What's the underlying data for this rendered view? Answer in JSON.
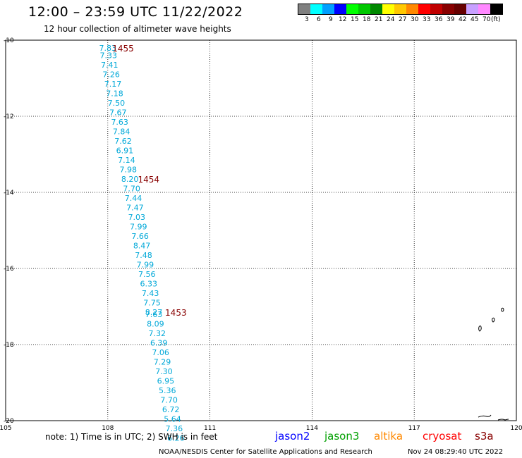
{
  "header": {
    "title": "12:00 – 23:59 UTC 11/22/2022",
    "subtitle": "12 hour collection of altimeter wave heights"
  },
  "legend": {
    "colors": [
      "#808080",
      "#00ffff",
      "#00a0ff",
      "#0000ff",
      "#00ff00",
      "#00c800",
      "#008800",
      "#ffff00",
      "#ffc800",
      "#ff8800",
      "#ff0000",
      "#c00000",
      "#880000",
      "#660000",
      "#c8a0ff",
      "#ff88ff",
      "#000000"
    ],
    "labels": [
      "3",
      "6",
      "9",
      "12",
      "15",
      "18",
      "21",
      "24",
      "27",
      "30",
      "33",
      "36",
      "39",
      "42",
      "45",
      "70",
      "(ft)"
    ]
  },
  "map": {
    "lon_range": [
      105,
      120
    ],
    "lat_range": [
      -10,
      -20
    ],
    "lon_ticks": [
      "105",
      "108",
      "111",
      "114",
      "117",
      "120"
    ],
    "lat_ticks": [
      "-10",
      "-12",
      "-14",
      "-16",
      "-18",
      "-20"
    ]
  },
  "chart_data": {
    "type": "scatter",
    "series": [
      {
        "name": "jason3",
        "color": "#00a8d8",
        "points": [
          {
            "lon": 108.0,
            "lat": -10.2,
            "value": "7.83"
          },
          {
            "lon": 108.02,
            "lat": -10.4,
            "value": "7.33"
          },
          {
            "lon": 108.05,
            "lat": -10.65,
            "value": "7.41"
          },
          {
            "lon": 108.1,
            "lat": -10.9,
            "value": "7.26"
          },
          {
            "lon": 108.15,
            "lat": -11.15,
            "value": "7.17"
          },
          {
            "lon": 108.2,
            "lat": -11.4,
            "value": "7.18"
          },
          {
            "lon": 108.25,
            "lat": -11.65,
            "value": "7.50"
          },
          {
            "lon": 108.3,
            "lat": -11.9,
            "value": "7.67"
          },
          {
            "lon": 108.35,
            "lat": -12.15,
            "value": "7.63"
          },
          {
            "lon": 108.4,
            "lat": -12.4,
            "value": "7.84"
          },
          {
            "lon": 108.45,
            "lat": -12.65,
            "value": "7.62"
          },
          {
            "lon": 108.5,
            "lat": -12.9,
            "value": "6.91"
          },
          {
            "lon": 108.55,
            "lat": -13.15,
            "value": "7.14"
          },
          {
            "lon": 108.6,
            "lat": -13.4,
            "value": "7.98"
          },
          {
            "lon": 108.65,
            "lat": -13.65,
            "value": "8.20"
          },
          {
            "lon": 108.7,
            "lat": -13.9,
            "value": "7.70"
          },
          {
            "lon": 108.75,
            "lat": -14.15,
            "value": "7.44"
          },
          {
            "lon": 108.8,
            "lat": -14.4,
            "value": "7.47"
          },
          {
            "lon": 108.85,
            "lat": -14.65,
            "value": "7.03"
          },
          {
            "lon": 108.9,
            "lat": -14.9,
            "value": "7.99"
          },
          {
            "lon": 108.95,
            "lat": -15.15,
            "value": "7.66"
          },
          {
            "lon": 109.0,
            "lat": -15.4,
            "value": "8.47"
          },
          {
            "lon": 109.05,
            "lat": -15.65,
            "value": "7.48"
          },
          {
            "lon": 109.1,
            "lat": -15.9,
            "value": "7.99"
          },
          {
            "lon": 109.15,
            "lat": -16.15,
            "value": "7.56"
          },
          {
            "lon": 109.2,
            "lat": -16.4,
            "value": "6.33"
          },
          {
            "lon": 109.25,
            "lat": -16.65,
            "value": "7.43"
          },
          {
            "lon": 109.3,
            "lat": -16.9,
            "value": "7.75"
          },
          {
            "lon": 109.35,
            "lat": -17.15,
            "value": "8.27"
          },
          {
            "lon": 109.35,
            "lat": -17.2,
            "value": "7.63"
          },
          {
            "lon": 109.4,
            "lat": -17.45,
            "value": "8.09"
          },
          {
            "lon": 109.45,
            "lat": -17.7,
            "value": "7.32"
          },
          {
            "lon": 109.5,
            "lat": -17.95,
            "value": "6.39"
          },
          {
            "lon": 109.55,
            "lat": -18.2,
            "value": "7.06"
          },
          {
            "lon": 109.6,
            "lat": -18.45,
            "value": "7.29"
          },
          {
            "lon": 109.65,
            "lat": -18.7,
            "value": "7.30"
          },
          {
            "lon": 109.7,
            "lat": -18.95,
            "value": "6.95"
          },
          {
            "lon": 109.75,
            "lat": -19.2,
            "value": "5.36"
          },
          {
            "lon": 109.8,
            "lat": -19.45,
            "value": "7.70"
          },
          {
            "lon": 109.85,
            "lat": -19.7,
            "value": "6.72"
          },
          {
            "lon": 109.9,
            "lat": -19.95,
            "value": "5.64"
          },
          {
            "lon": 109.95,
            "lat": -20.2,
            "value": "7.36"
          },
          {
            "lon": 110.0,
            "lat": -20.45,
            "value": "6.26"
          }
        ]
      }
    ],
    "time_labels": [
      {
        "lon": 108.45,
        "lat": -10.2,
        "text": "1455"
      },
      {
        "lon": 109.2,
        "lat": -13.65,
        "text": "1454"
      },
      {
        "lon": 110.0,
        "lat": -17.15,
        "text": "1453"
      }
    ]
  },
  "footer": {
    "note": "note: 1) Time is in UTC; 2) SWH is in feet",
    "credit": "NOAA/NESDIS Center for Satellite Applications and Research",
    "timestamp": "Nov 24 08:29:40 UTC 2022",
    "satellites": [
      {
        "name": "jason2",
        "color": "#0000ff"
      },
      {
        "name": "jason3",
        "color": "#00a000"
      },
      {
        "name": "altika",
        "color": "#ff8800"
      },
      {
        "name": "cryosat",
        "color": "#ff0000"
      },
      {
        "name": "s3a",
        "color": "#880000"
      }
    ]
  }
}
